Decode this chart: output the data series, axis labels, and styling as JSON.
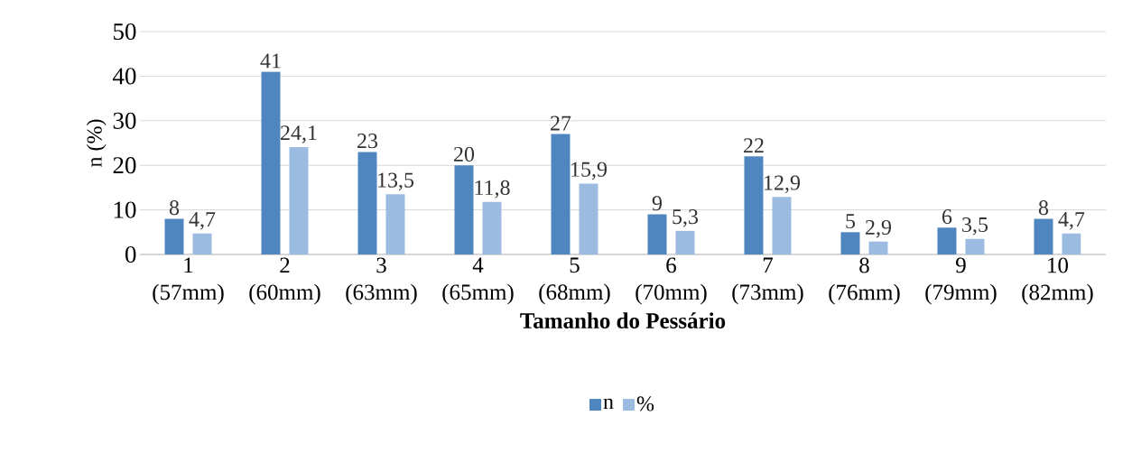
{
  "chart_data": {
    "type": "bar",
    "xlabel": "Tamanho do Pessário",
    "ylabel": "n (%)",
    "categories": [
      "1 (57mm)",
      "2 (60mm)",
      "3 (63mm)",
      "4 (65mm)",
      "5 (68mm)",
      "6 (70mm)",
      "7 (73mm)",
      "8 (76mm)",
      "9 (79mm)",
      "10 (82mm)"
    ],
    "series": [
      {
        "name": "n",
        "color": "#4f86c0",
        "values": [
          8,
          41,
          23,
          20,
          27,
          9,
          22,
          5,
          6,
          8
        ],
        "value_labels": [
          "8",
          "41",
          "23",
          "20",
          "27",
          "9",
          "22",
          "5",
          "6",
          "8"
        ]
      },
      {
        "name": "%",
        "color": "#9bbbe0",
        "values": [
          4.7,
          24.1,
          13.5,
          11.8,
          15.9,
          5.3,
          12.9,
          2.9,
          3.5,
          4.7
        ],
        "value_labels": [
          "4,7",
          "24,1",
          "13,5",
          "11,8",
          "15,9",
          "5,3",
          "12,9",
          "2,9",
          "3,5",
          "4,7"
        ]
      }
    ],
    "ylim": [
      0,
      50
    ],
    "yticks": [
      0,
      10,
      20,
      30,
      40,
      50
    ],
    "grid": "y",
    "legend": "bottom"
  }
}
